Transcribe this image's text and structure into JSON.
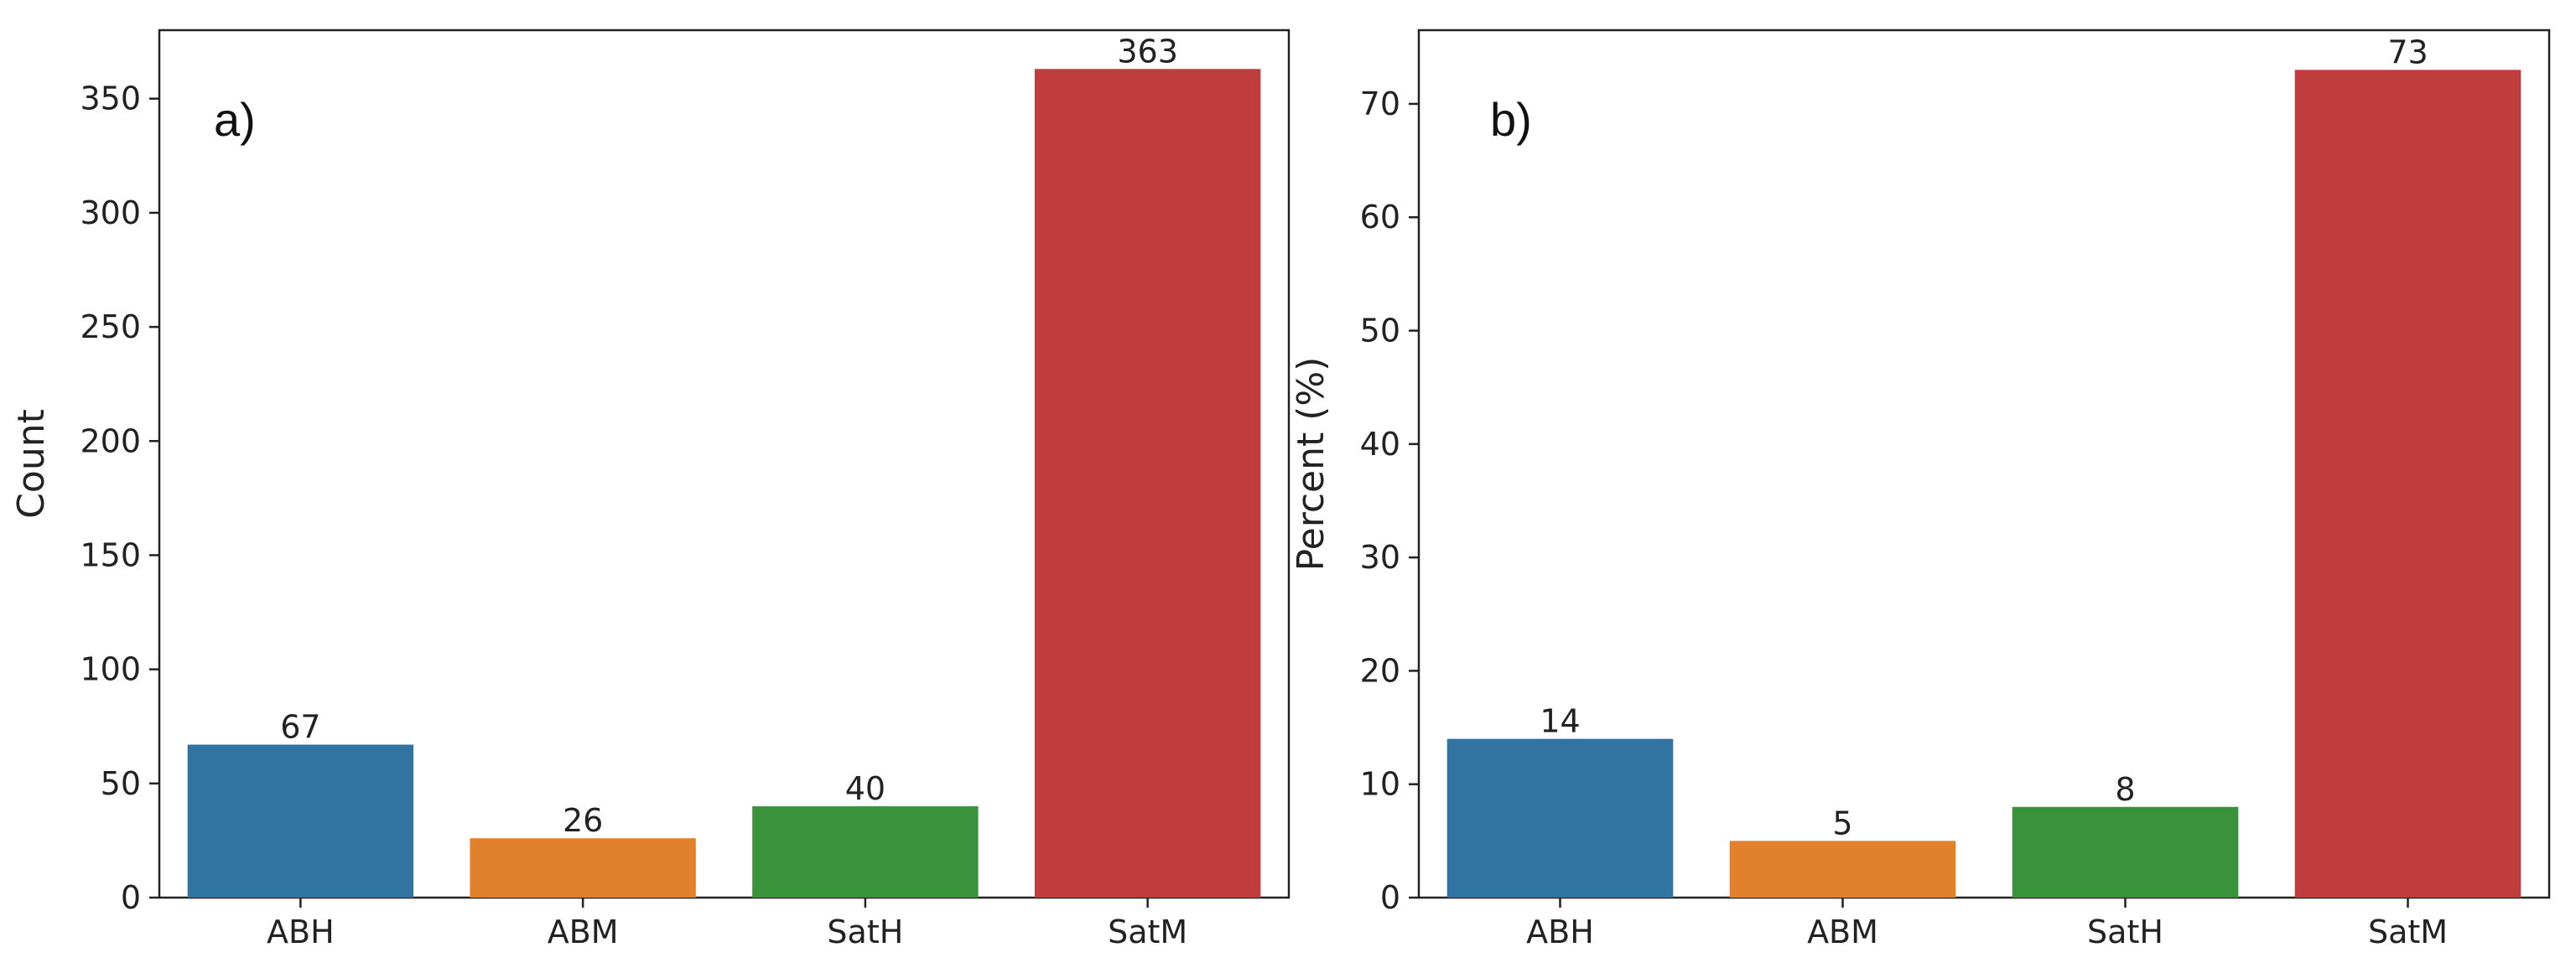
{
  "chart_data": [
    {
      "type": "bar",
      "panel_label": "a)",
      "categories": [
        "ABH",
        "ABM",
        "SatH",
        "SatM"
      ],
      "values": [
        67,
        26,
        40,
        363
      ],
      "data_labels": [
        "67",
        "26",
        "40",
        "363"
      ],
      "xlabel": "",
      "ylabel": "Count",
      "ylim": [
        0,
        380
      ],
      "yticks": [
        0,
        50,
        100,
        150,
        200,
        250,
        300,
        350
      ],
      "colors": [
        "#3274a1",
        "#e1812c",
        "#3a923a",
        "#c03d3e"
      ],
      "grid": false
    },
    {
      "type": "bar",
      "panel_label": "b)",
      "categories": [
        "ABH",
        "ABM",
        "SatH",
        "SatM"
      ],
      "values": [
        14,
        5,
        8,
        73
      ],
      "data_labels": [
        "14",
        "5",
        "8",
        "73"
      ],
      "xlabel": "",
      "ylabel": "Percent (%)",
      "ylim": [
        0,
        76.5
      ],
      "yticks": [
        0,
        10,
        20,
        30,
        40,
        50,
        60,
        70
      ],
      "colors": [
        "#3274a1",
        "#e1812c",
        "#3a923a",
        "#c03d3e"
      ],
      "grid": false
    }
  ]
}
